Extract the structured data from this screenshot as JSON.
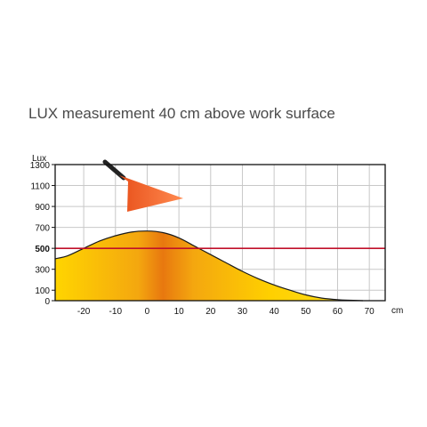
{
  "title": "LUX measurement 40 cm above work surface",
  "chart_data": {
    "type": "area",
    "title": "LUX measurement 40 cm above work surface",
    "ylabel": "Lux",
    "xunit": "cm",
    "xlim": [
      -29,
      75
    ],
    "ylim": [
      0,
      1300
    ],
    "x_ticks": [
      -20,
      -10,
      0,
      10,
      20,
      30,
      40,
      50,
      60,
      70
    ],
    "y_ticks": [
      0,
      100,
      300,
      500,
      700,
      900,
      1100,
      1300
    ],
    "y_tick_labels": [
      "0",
      "100",
      "300",
      "500",
      "700",
      "900",
      "1100",
      "1300"
    ],
    "grid": true,
    "reference_line": {
      "value": 500,
      "color": "#c0102a"
    },
    "series": [
      {
        "x": [
          -29,
          -25,
          -20,
          -15,
          -10,
          -5,
          0,
          5,
          10,
          15,
          20,
          25,
          30,
          35,
          40,
          45,
          50,
          55,
          60,
          65,
          68
        ],
        "y": [
          400,
          430,
          500,
          570,
          620,
          655,
          665,
          650,
          600,
          520,
          440,
          360,
          280,
          210,
          150,
          100,
          55,
          25,
          10,
          3,
          0
        ]
      }
    ],
    "colors": {
      "fill_center": "#e8780f",
      "fill_edge": "#ffd500",
      "grid": "#c8c8c8",
      "lamp": "#e84a1a"
    }
  }
}
